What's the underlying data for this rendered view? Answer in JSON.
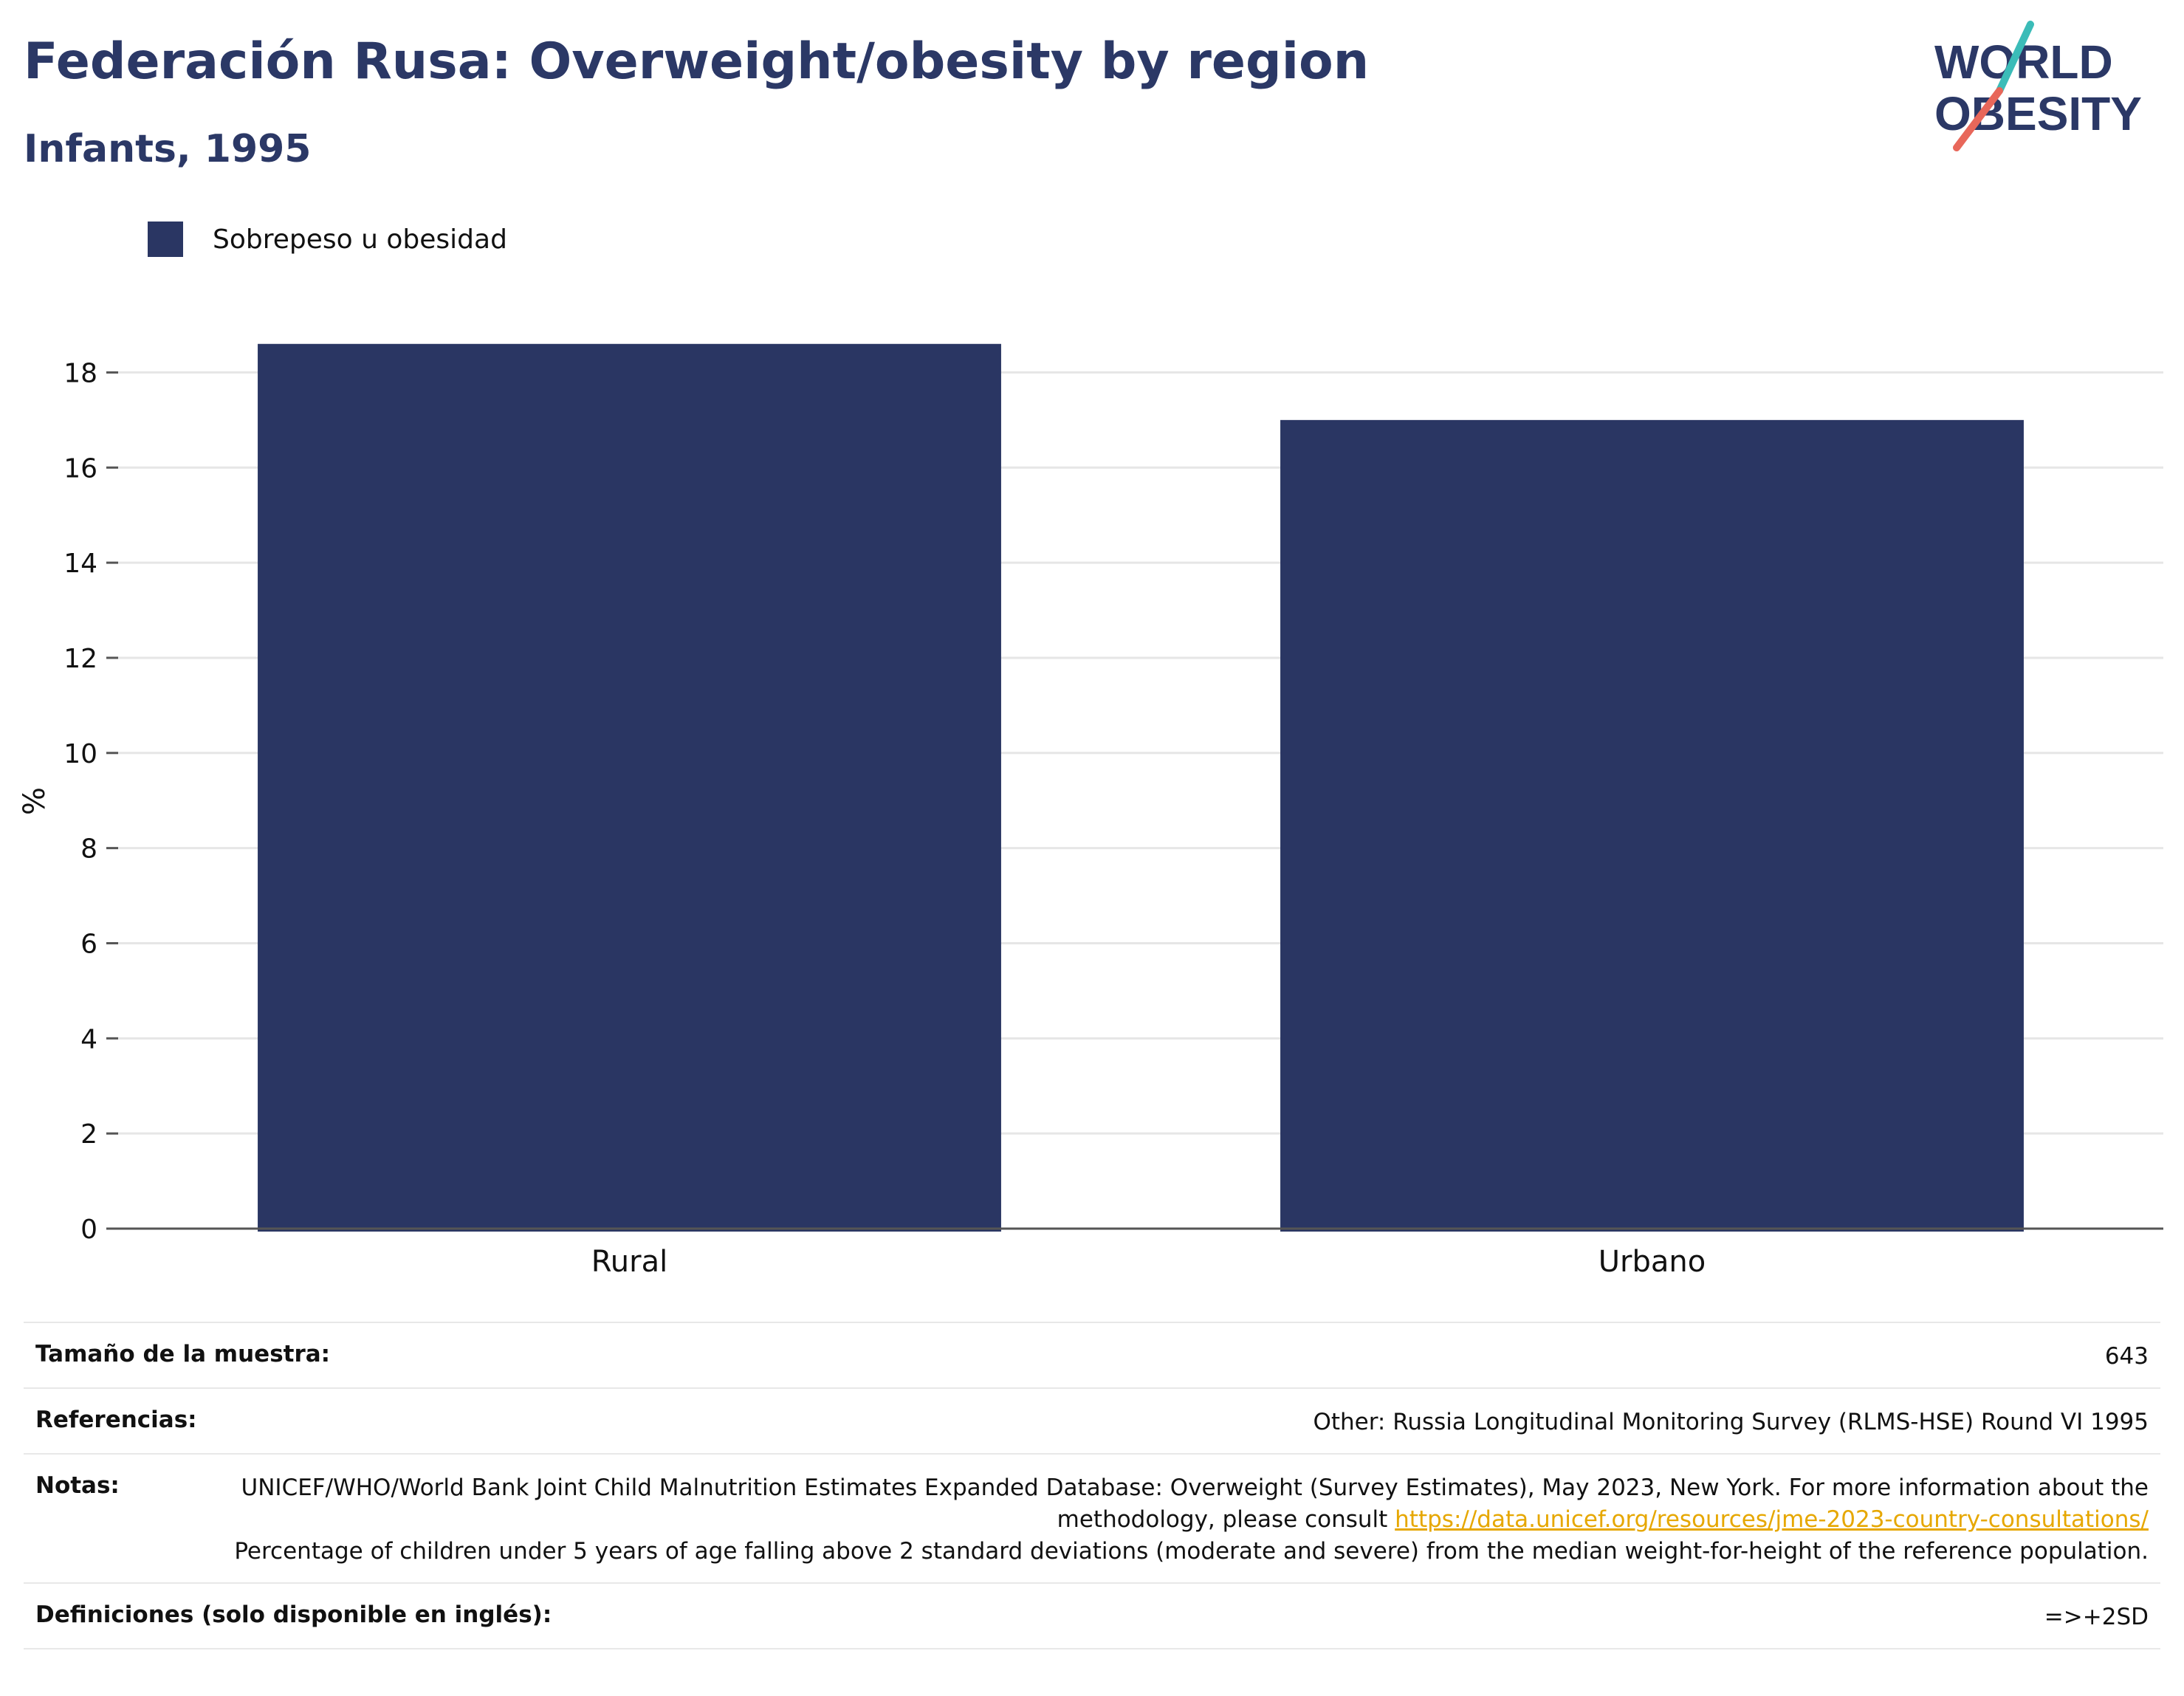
{
  "header": {
    "title": "Federación Rusa: Overweight/obesity by region",
    "subtitle": "Infants, 1995"
  },
  "logo": {
    "line1": "WORLD",
    "line2": "OBESITY"
  },
  "legend": {
    "label": "Sobrepeso u obesidad",
    "color": "#2a3663"
  },
  "chart_data": {
    "type": "bar",
    "categories": [
      "Rural",
      "Urbano"
    ],
    "series": [
      {
        "name": "Sobrepeso u obesidad",
        "values": [
          18.6,
          17.0
        ]
      }
    ],
    "ylabel": "%",
    "ylim": [
      0,
      19
    ],
    "yticks": [
      0,
      2,
      4,
      6,
      8,
      10,
      12,
      14,
      16,
      18
    ],
    "grid": true,
    "legend_position": "top-left",
    "bar_color": "#2a3663"
  },
  "meta": {
    "sample_size_label": "Tamaño de la muestra:",
    "sample_size_value": "643",
    "references_label": "Referencias:",
    "references_value": "Other: Russia Longitudinal Monitoring Survey (RLMS-HSE) Round VI 1995",
    "notes_label": "Notas:",
    "notes_text_1": "UNICEF/WHO/World Bank Joint Child Malnutrition Estimates Expanded Database: Overweight (Survey Estimates), May 2023, New York. For more information about the methodology, please consult ",
    "notes_link": "https://data.unicef.org/resources/jme-2023-country-consultations/",
    "notes_text_2": "Percentage of children under 5 years of age falling above 2 standard deviations (moderate and severe) from the median weight-for-height of the reference population.",
    "definitions_label": "Definiciones (solo disponible en inglés):",
    "definitions_value": "=>+2SD"
  }
}
